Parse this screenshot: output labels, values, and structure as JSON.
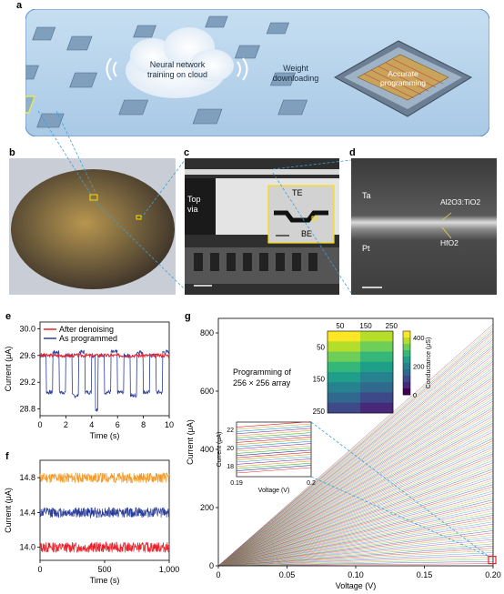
{
  "panel_labels": {
    "a": "a",
    "b": "b",
    "c": "c",
    "d": "d",
    "e": "e",
    "f": "f",
    "g": "g"
  },
  "panel_a": {
    "cloud_text_1": "Neural network",
    "cloud_text_2": "training on cloud",
    "weight_text_1": "Weight",
    "weight_text_2": "downloading",
    "chip_text_1": "Accurate",
    "chip_text_2": "programming"
  },
  "panel_c": {
    "top_via": "Top",
    "top_via_2": "via",
    "te": "TE",
    "be": "BE"
  },
  "panel_d": {
    "ta": "Ta",
    "pt": "Pt",
    "oxide": "Al2O3:TiO2",
    "hfo2": "HfO2"
  },
  "colors": {
    "red": "#e8222b",
    "blue": "#2b3d9a",
    "orange": "#f39a2a",
    "green_dots": "#3dbd3d"
  },
  "chart_data": [
    {
      "type": "line",
      "panel": "e",
      "xlabel": "Time (s)",
      "ylabel": "Current (μA)",
      "xlim": [
        0,
        10
      ],
      "ylim": [
        28.7,
        30.1
      ],
      "xticks": [
        "0",
        "2",
        "4",
        "6",
        "8",
        "10"
      ],
      "yticks": [
        "28.8",
        "29.2",
        "29.6",
        "30.0"
      ],
      "legend_placement": "top-left",
      "series": [
        {
          "name": "After denoising",
          "color": "#e8222b",
          "x": [
            0,
            1,
            2,
            3,
            4,
            5,
            6,
            7,
            8,
            9,
            10
          ],
          "values": [
            29.6,
            29.6,
            29.58,
            29.6,
            29.62,
            29.58,
            29.6,
            29.6,
            29.57,
            29.6,
            29.6
          ]
        },
        {
          "name": "As programmed",
          "color": "#2b3d9a",
          "x": [
            0,
            0.5,
            1,
            1.5,
            2,
            2.5,
            3,
            3.5,
            4,
            4.3,
            4.5,
            5,
            5.5,
            6,
            6.5,
            7,
            7.5,
            8,
            8.5,
            9,
            9.5,
            10
          ],
          "values": [
            29.6,
            29.05,
            29.65,
            29.05,
            29.6,
            29.0,
            29.65,
            29.05,
            29.6,
            28.8,
            29.6,
            29.05,
            29.65,
            29.05,
            29.6,
            29.0,
            29.65,
            29.05,
            29.6,
            29.05,
            29.65,
            29.5
          ]
        }
      ]
    },
    {
      "type": "line",
      "panel": "f",
      "xlabel": "Time (s)",
      "ylabel": "Current (μA)",
      "xlim": [
        0,
        1000
      ],
      "ylim": [
        13.85,
        15.0
      ],
      "xticks": [
        "0",
        "500",
        "1,000"
      ],
      "yticks": [
        "14.0",
        "14.4",
        "14.8"
      ],
      "series": [
        {
          "color": "#f39a2a",
          "level": 14.8
        },
        {
          "color": "#2b3d9a",
          "level": 14.4
        },
        {
          "color": "#e8222b",
          "level": 14.0
        }
      ]
    },
    {
      "type": "line",
      "panel": "g",
      "xlabel": "Voltage (V)",
      "ylabel": "Current (μA)",
      "xlim": [
        0,
        0.2
      ],
      "ylim": [
        0,
        850
      ],
      "xticks": [
        "0",
        "0.05",
        "0.10",
        "0.15",
        "0.20"
      ],
      "yticks": [
        "0",
        "200",
        "400",
        "600",
        "800"
      ],
      "annotation_1": "Programming of",
      "annotation_2": "256 × 256 array",
      "max_current": 830,
      "inset": {
        "xlabel": "Voltage (V)",
        "ylabel": "Current (μA)",
        "xticks": [
          "0.19",
          "0.2"
        ],
        "yticks": [
          "18",
          "20",
          "22"
        ]
      },
      "heatmap": {
        "top_ticks": [
          "50",
          "150",
          "250"
        ],
        "left_ticks": [
          "50",
          "150",
          "250"
        ],
        "colorbar_label": "Conductance (μS)",
        "colorbar_ticks": [
          "0",
          "200",
          "400"
        ]
      }
    }
  ]
}
